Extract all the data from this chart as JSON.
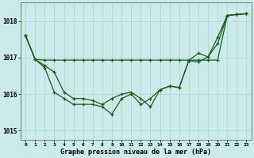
{
  "title": "Graphe pression niveau de la mer (hPa)",
  "bg_color": "#cceaea",
  "grid_color": "#b0d8d8",
  "line_color": "#1a5c1a",
  "x_labels": [
    "0",
    "1",
    "2",
    "3",
    "4",
    "5",
    "6",
    "7",
    "8",
    "9",
    "10",
    "11",
    "12",
    "13",
    "14",
    "15",
    "16",
    "17",
    "18",
    "19",
    "20",
    "21",
    "22",
    "23"
  ],
  "ylim": [
    1014.75,
    1018.5
  ],
  "yticks": [
    1015,
    1016,
    1017,
    1018
  ],
  "series1": [
    1017.6,
    1016.95,
    1016.93,
    1016.93,
    1016.93,
    1016.93,
    1016.93,
    1016.93,
    1016.93,
    1016.93,
    1016.93,
    1016.93,
    1016.93,
    1016.93,
    1016.93,
    1016.93,
    1016.93,
    1016.93,
    1016.93,
    1016.93,
    1016.93,
    1018.15,
    1018.18,
    1018.2
  ],
  "series2": [
    1017.6,
    1016.95,
    1016.78,
    1016.6,
    1016.05,
    1015.88,
    1015.88,
    1015.82,
    1015.72,
    1015.88,
    1016.0,
    1016.05,
    1015.88,
    1015.65,
    1016.12,
    1016.22,
    1016.18,
    1016.92,
    1016.88,
    1017.02,
    1017.55,
    1018.15,
    1018.18,
    1018.2
  ],
  "series3": [
    1017.6,
    1016.95,
    1016.72,
    1016.05,
    1015.88,
    1015.72,
    1015.72,
    1015.72,
    1015.65,
    1015.45,
    1015.88,
    1016.0,
    1015.72,
    1015.88,
    1016.12,
    1016.22,
    1016.18,
    1016.92,
    1017.12,
    1017.02,
    1017.38,
    1018.15,
    1018.18,
    1018.2
  ],
  "lw": 0.9,
  "ms": 3.0
}
